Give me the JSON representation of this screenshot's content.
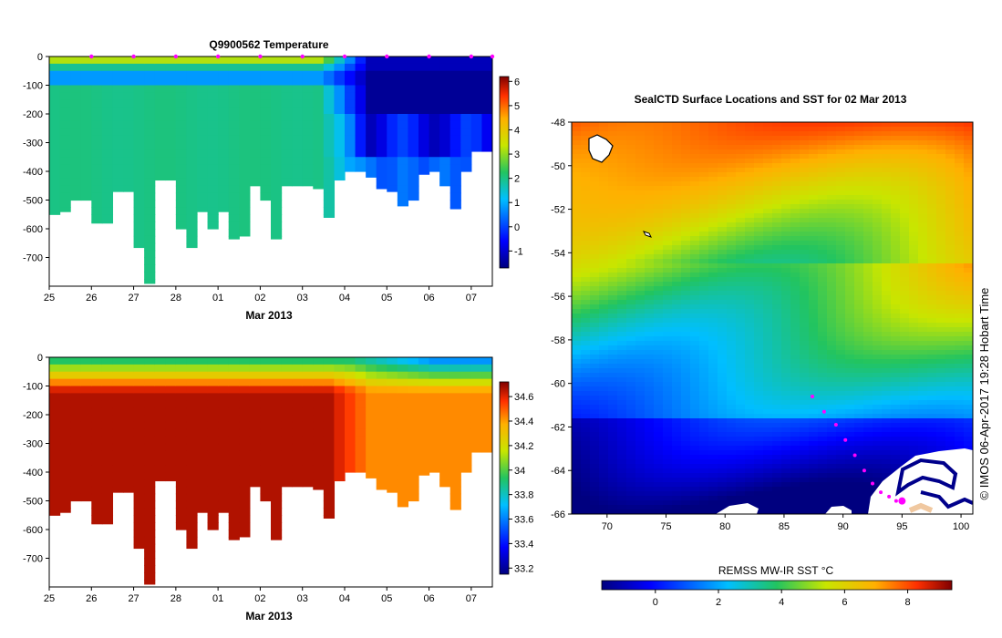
{
  "chart_data": [
    {
      "type": "heatmap",
      "title": "Q9900562  Temperature",
      "xlabel": "Mar 2013",
      "x_tick_labels": [
        "25",
        "26",
        "27",
        "28",
        "01",
        "02",
        "03",
        "04",
        "05",
        "06",
        "07"
      ],
      "y_tick_labels": [
        "0",
        "-100",
        "-200",
        "-300",
        "-400",
        "-500",
        "-600",
        "-700"
      ],
      "y_ticks": [
        0,
        -100,
        -200,
        -300,
        -400,
        -500,
        -600,
        -700
      ],
      "ylim": [
        -800,
        0
      ],
      "colorbar_ticks": [
        6,
        5,
        4,
        3,
        2,
        1,
        0,
        -1
      ],
      "colorbar_range": [
        -1.7,
        6.2
      ],
      "profile_days": [
        0.0,
        0.25,
        0.5,
        0.75,
        1.0,
        1.25,
        1.5,
        1.75,
        2.0,
        2.25,
        2.5,
        2.75,
        3.0,
        3.25,
        3.5,
        3.75,
        4.0,
        4.25,
        4.5,
        4.75,
        5.0,
        5.25,
        5.5,
        5.75,
        6.0,
        6.25,
        6.5,
        6.75,
        7.0,
        7.25,
        7.5,
        7.75,
        8.0,
        8.25,
        8.5,
        8.75,
        9.0,
        9.25,
        9.5,
        9.75,
        10.0,
        10.25,
        10.5
      ],
      "profile_max_depth": [
        550,
        540,
        500,
        500,
        580,
        580,
        470,
        470,
        665,
        790,
        430,
        430,
        600,
        665,
        540,
        600,
        540,
        635,
        625,
        450,
        500,
        635,
        450,
        450,
        450,
        460,
        560,
        430,
        400,
        400,
        420,
        460,
        470,
        520,
        500,
        410,
        400,
        450,
        530,
        400,
        330,
        330,
        130
      ],
      "surface_marker_days": [
        1,
        2,
        3,
        4,
        5,
        6,
        7,
        8,
        9,
        10,
        10.5
      ],
      "surface_marker_color": "#ff00ff"
    },
    {
      "type": "heatmap",
      "title": "",
      "xlabel": "Mar 2013",
      "x_tick_labels": [
        "25",
        "26",
        "27",
        "28",
        "01",
        "02",
        "03",
        "04",
        "05",
        "06",
        "07"
      ],
      "y_tick_labels": [
        "0",
        "-100",
        "-200",
        "-300",
        "-400",
        "-500",
        "-600",
        "-700"
      ],
      "y_ticks": [
        0,
        -100,
        -200,
        -300,
        -400,
        -500,
        -600,
        -700
      ],
      "ylim": [
        -800,
        0
      ],
      "colorbar_ticks": [
        "34.6",
        "34.4",
        "34.2",
        "34",
        "33.8",
        "33.6",
        "33.4",
        "33.2"
      ],
      "colorbar_values": [
        34.6,
        34.4,
        34.2,
        34.0,
        33.8,
        33.6,
        33.4,
        33.2
      ],
      "colorbar_range": [
        33.15,
        34.72
      ]
    },
    {
      "type": "heatmap",
      "title": "SealCTD Surface Locations and SST for 02 Mar 2013",
      "xlabel": "",
      "x_tick_labels": [
        "70",
        "75",
        "80",
        "85",
        "90",
        "95",
        "100"
      ],
      "x_ticks": [
        70,
        75,
        80,
        85,
        90,
        95,
        100
      ],
      "xlim": [
        67,
        101
      ],
      "y_tick_labels": [
        "-48",
        "-50",
        "-52",
        "-54",
        "-56",
        "-58",
        "-60",
        "-62",
        "-64",
        "-66"
      ],
      "y_ticks": [
        -48,
        -50,
        -52,
        -54,
        -56,
        -58,
        -60,
        -62,
        -64,
        -66
      ],
      "ylim": [
        -66,
        -48
      ],
      "colorbar_label": "REMSS MW-IR SST °C",
      "colorbar_ticks": [
        "0",
        "2",
        "4",
        "6",
        "8"
      ],
      "colorbar_values": [
        0,
        2,
        4,
        6,
        8
      ],
      "colorbar_range": [
        -1.7,
        9.4
      ],
      "track_lon": [
        87.4,
        88.4,
        89.4,
        90.2,
        91.0,
        91.8,
        92.5,
        93.2,
        93.9,
        94.5,
        95.0
      ],
      "track_lat": [
        -60.6,
        -61.3,
        -61.9,
        -62.6,
        -63.3,
        -64.0,
        -64.6,
        -65.0,
        -65.2,
        -65.4,
        -65.4
      ],
      "track_color": "#ff00ff",
      "credit": "© IMOS 06-Apr-2017 19:28 Hobart Time"
    }
  ]
}
